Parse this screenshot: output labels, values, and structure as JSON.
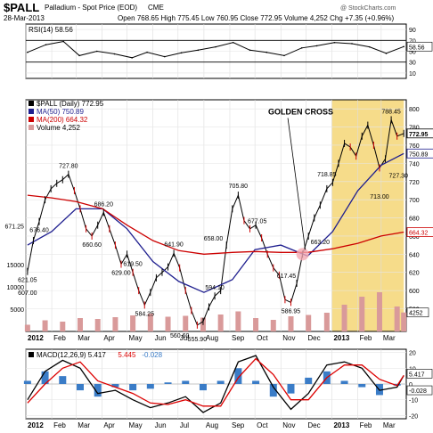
{
  "header": {
    "ticker": "$PALL",
    "name": "Palladium - Spot Price (EOD)",
    "exchange": "CME",
    "date": "28-Mar-2013",
    "open_label": "Open",
    "open": "768.65",
    "high_label": "High",
    "high": "775.45",
    "low_label": "Low",
    "low": "760.95",
    "close_label": "Close",
    "close": "772.95",
    "volume_label": "Volume",
    "volume": "4,252",
    "chg_label": "Chg",
    "chg": "+7.35 (+0.96%)",
    "watermark": "@ StockCharts.com"
  },
  "colors": {
    "price": "#000000",
    "up": "#000000",
    "down": "#cc0000",
    "ma50": "#1f1f8f",
    "ma200": "#cc0000",
    "volume": "#d99a9a",
    "highlight": "#f6dc8a",
    "macd_line": "#000000",
    "macd_signal": "#dd0000",
    "macd_hist": "#3a7cc7",
    "golden_dot": "#f4a9b3"
  },
  "chart_data": [
    {
      "type": "line",
      "panel": "rsi",
      "legend": "RSI(14) 58.56",
      "last_value": "58.56",
      "ylim": [
        0,
        100
      ],
      "y_ticks": [
        "90",
        "70",
        "50",
        "30",
        "10"
      ],
      "levels": [
        70,
        30
      ],
      "x": [
        "2012-01-03",
        "2012-01-25",
        "2012-02-15",
        "2012-03-05",
        "2012-03-26",
        "2012-04-16",
        "2012-05-07",
        "2012-05-25",
        "2012-06-15",
        "2012-07-05",
        "2012-07-25",
        "2012-08-15",
        "2012-09-05",
        "2012-09-25",
        "2012-10-15",
        "2012-11-05",
        "2012-11-26",
        "2012-12-14",
        "2013-01-04",
        "2013-01-25",
        "2013-02-15",
        "2013-03-07",
        "2013-03-28"
      ],
      "values": [
        48,
        62,
        68,
        42,
        50,
        45,
        38,
        48,
        40,
        47,
        52,
        58,
        66,
        52,
        48,
        42,
        56,
        60,
        66,
        64,
        58,
        46,
        58.56
      ]
    },
    {
      "type": "line",
      "panel": "price",
      "legend": [
        {
          "name": "$PALL (Daily) 772.95"
        },
        {
          "name": "MA(50) 750.89"
        },
        {
          "name": "MA(200) 664.32"
        },
        {
          "name": "Volume 4,252"
        }
      ],
      "ylim": [
        555,
        810
      ],
      "y_ticks": [
        "800",
        "780",
        "760",
        "740",
        "720",
        "700",
        "680",
        "660",
        "640",
        "620",
        "600",
        "580"
      ],
      "right_labels": [
        "772.95",
        "750.89",
        "664.32"
      ],
      "x_ticks": [
        "2012",
        "Feb",
        "Mar",
        "Apr",
        "May",
        "Jun",
        "Jul",
        "Aug",
        "Sep",
        "Oct",
        "Nov",
        "Dec",
        "2013",
        "Feb",
        "Mar"
      ],
      "volume_ticks": [
        "15000",
        "10000",
        "5000"
      ],
      "volume_last_label": "4252",
      "highlight_range": [
        "2013-01-01",
        "2013-03-28"
      ],
      "series": [
        {
          "role": "price",
          "x": [
            "2012-01-03",
            "2012-01-10",
            "2012-01-17",
            "2012-01-24",
            "2012-01-31",
            "2012-02-07",
            "2012-02-14",
            "2012-02-21",
            "2012-02-28",
            "2012-03-06",
            "2012-03-13",
            "2012-03-20",
            "2012-03-27",
            "2012-04-03",
            "2012-04-10",
            "2012-04-17",
            "2012-04-24",
            "2012-05-01",
            "2012-05-08",
            "2012-05-15",
            "2012-05-22",
            "2012-05-29",
            "2012-06-05",
            "2012-06-12",
            "2012-06-19",
            "2012-06-26",
            "2012-07-03",
            "2012-07-10",
            "2012-07-17",
            "2012-07-24",
            "2012-07-31",
            "2012-08-07",
            "2012-08-14",
            "2012-08-21",
            "2012-08-28",
            "2012-09-04",
            "2012-09-11",
            "2012-09-18",
            "2012-09-25",
            "2012-10-02",
            "2012-10-09",
            "2012-10-16",
            "2012-10-23",
            "2012-10-30",
            "2012-11-06",
            "2012-11-13",
            "2012-11-20",
            "2012-11-27",
            "2012-12-04",
            "2012-12-11",
            "2012-12-18",
            "2012-12-26",
            "2013-01-02",
            "2013-01-09",
            "2013-01-16",
            "2013-01-23",
            "2013-01-30",
            "2013-02-06",
            "2013-02-13",
            "2013-02-20",
            "2013-02-27",
            "2013-03-06",
            "2013-03-13",
            "2013-03-20",
            "2013-03-28"
          ],
          "values": [
            621,
            655,
            676,
            700,
            712,
            718,
            722,
            728,
            710,
            690,
            668,
            660,
            672,
            686,
            668,
            650,
            629,
            640,
            620,
            600,
            584,
            598,
            614,
            620,
            626,
            641,
            625,
            600,
            578,
            562,
            566,
            582,
            594,
            600,
            650,
            690,
            705,
            677,
            668,
            672,
            658,
            640,
            625,
            617,
            590,
            587,
            608,
            640,
            660,
            680,
            694,
            712,
            719,
            740,
            762,
            758,
            748,
            770,
            782,
            760,
            735,
            745,
            788,
            770,
            772.95
          ]
        },
        {
          "role": "ma50",
          "x": [
            "2012-01-03",
            "2012-02-01",
            "2012-03-01",
            "2012-04-02",
            "2012-05-01",
            "2012-06-01",
            "2012-07-02",
            "2012-08-01",
            "2012-09-04",
            "2012-10-01",
            "2012-11-01",
            "2012-12-03",
            "2013-01-02",
            "2013-02-01",
            "2013-03-01",
            "2013-03-28"
          ],
          "values": [
            650,
            665,
            690,
            690,
            668,
            632,
            610,
            598,
            612,
            645,
            650,
            638,
            665,
            710,
            738,
            750.89
          ]
        },
        {
          "role": "ma200",
          "x": [
            "2012-01-03",
            "2012-02-01",
            "2012-03-01",
            "2012-04-02",
            "2012-05-01",
            "2012-06-01",
            "2012-07-02",
            "2012-08-01",
            "2012-09-04",
            "2012-10-01",
            "2012-11-01",
            "2012-12-03",
            "2013-01-02",
            "2013-02-01",
            "2013-03-01",
            "2013-03-28"
          ],
          "values": [
            705,
            702,
            698,
            690,
            672,
            655,
            644,
            640,
            642,
            643,
            642,
            642,
            646,
            652,
            660,
            664.32
          ]
        }
      ],
      "volume": {
        "x": [
          "2012-01-03",
          "2012-01-24",
          "2012-02-14",
          "2012-03-06",
          "2012-03-27",
          "2012-04-17",
          "2012-05-08",
          "2012-05-29",
          "2012-06-19",
          "2012-07-10",
          "2012-07-31",
          "2012-08-21",
          "2012-09-11",
          "2012-10-02",
          "2012-10-23",
          "2012-11-13",
          "2012-12-04",
          "2012-12-26",
          "2013-01-16",
          "2013-02-06",
          "2013-02-27",
          "2013-03-20",
          "2013-03-28"
        ],
        "values": [
          1500,
          2500,
          2200,
          3000,
          2800,
          3200,
          3600,
          4000,
          3300,
          3500,
          3100,
          3800,
          4500,
          3000,
          2600,
          3400,
          3700,
          4200,
          6000,
          7800,
          8800,
          5600,
          4252
        ]
      },
      "annotations": [
        {
          "text": "727.80",
          "x": "2012-02-21",
          "y": 728,
          "pos": "above"
        },
        {
          "text": "671.25",
          "x": "2012-01-03",
          "y": 671,
          "pos": "left"
        },
        {
          "text": "676.40",
          "x": "2012-01-17",
          "y": 676,
          "pos": "below"
        },
        {
          "text": "660.60",
          "x": "2012-03-20",
          "y": 660,
          "pos": "below"
        },
        {
          "text": "686.20",
          "x": "2012-04-03",
          "y": 686,
          "pos": "above"
        },
        {
          "text": "629.00",
          "x": "2012-04-24",
          "y": 629,
          "pos": "below"
        },
        {
          "text": "641.90",
          "x": "2012-06-26",
          "y": 642,
          "pos": "above"
        },
        {
          "text": "619.50",
          "x": "2012-05-08",
          "y": 620,
          "pos": "above"
        },
        {
          "text": "584.25",
          "x": "2012-05-22",
          "y": 584,
          "pos": "below"
        },
        {
          "text": "560.60",
          "x": "2012-07-03",
          "y": 560,
          "pos": "below"
        },
        {
          "text": "555.90",
          "x": "2012-07-24",
          "y": 556,
          "pos": "below"
        },
        {
          "text": "594.10",
          "x": "2012-08-14",
          "y": 594,
          "pos": "above"
        },
        {
          "text": "658.00",
          "x": "2012-08-28",
          "y": 658,
          "pos": "left"
        },
        {
          "text": "705.80",
          "x": "2012-09-11",
          "y": 706,
          "pos": "above"
        },
        {
          "text": "677.05",
          "x": "2012-09-18",
          "y": 677,
          "pos": "right"
        },
        {
          "text": "617.45",
          "x": "2012-10-23",
          "y": 617,
          "pos": "right"
        },
        {
          "text": "586.95",
          "x": "2012-11-13",
          "y": 587,
          "pos": "below"
        },
        {
          "text": "621.05",
          "x": "2012-01-03",
          "y": 621,
          "pos": "below"
        },
        {
          "text": "607.00",
          "x": "2012-01-03",
          "y": 607,
          "pos": "below"
        },
        {
          "text": "663.20",
          "x": "2012-12-18",
          "y": 663,
          "pos": "below"
        },
        {
          "text": "718.85",
          "x": "2012-12-26",
          "y": 719,
          "pos": "above"
        },
        {
          "text": "788.45",
          "x": "2013-03-13",
          "y": 788,
          "pos": "above"
        },
        {
          "text": "727.30",
          "x": "2013-03-06",
          "y": 727,
          "pos": "right"
        },
        {
          "text": "713.00",
          "x": "2013-02-27",
          "y": 713,
          "pos": "below"
        },
        {
          "text": "GOLDEN CROSS",
          "x": "2012-11-20",
          "y": 735,
          "pos": "callout"
        }
      ]
    },
    {
      "type": "line",
      "panel": "macd",
      "legend": [
        {
          "name": "MACD(12,26,9)",
          "value": "5.417"
        },
        {
          "name": "",
          "value": "5.445"
        },
        {
          "name": "",
          "value": "-0.028"
        }
      ],
      "ylim": [
        -22,
        22
      ],
      "y_ticks": [
        "20",
        "10",
        "0",
        "-10",
        "-20"
      ],
      "right_labels": [
        "5.417",
        "-0.028"
      ],
      "series": [
        {
          "role": "macd",
          "x": [
            "2012-01-03",
            "2012-01-24",
            "2012-02-14",
            "2012-03-06",
            "2012-03-27",
            "2012-04-17",
            "2012-05-08",
            "2012-05-29",
            "2012-06-19",
            "2012-07-10",
            "2012-07-31",
            "2012-08-21",
            "2012-09-11",
            "2012-10-02",
            "2012-10-23",
            "2012-11-13",
            "2012-12-04",
            "2012-12-26",
            "2013-01-16",
            "2013-02-06",
            "2013-02-27",
            "2013-03-20",
            "2013-03-28"
          ],
          "values": [
            -10,
            8,
            15,
            10,
            -6,
            -4,
            -10,
            -15,
            -12,
            -8,
            -18,
            -12,
            14,
            18,
            -2,
            -16,
            -6,
            12,
            14,
            10,
            -4,
            -2,
            5.417
          ]
        },
        {
          "role": "signal",
          "x": [
            "2012-01-03",
            "2012-01-24",
            "2012-02-14",
            "2012-03-06",
            "2012-03-27",
            "2012-04-17",
            "2012-05-08",
            "2012-05-29",
            "2012-06-19",
            "2012-07-10",
            "2012-07-31",
            "2012-08-21",
            "2012-09-11",
            "2012-10-02",
            "2012-10-23",
            "2012-11-13",
            "2012-12-04",
            "2012-12-26",
            "2013-01-16",
            "2013-02-06",
            "2013-02-27",
            "2013-03-20",
            "2013-03-28"
          ],
          "values": [
            -12,
            0,
            10,
            14,
            2,
            -2,
            -6,
            -12,
            -13,
            -10,
            -14,
            -14,
            4,
            16,
            6,
            -10,
            -10,
            4,
            12,
            12,
            3,
            -1,
            5.445
          ]
        },
        {
          "role": "histogram",
          "x": [
            "2012-01-03",
            "2012-01-24",
            "2012-02-14",
            "2012-03-06",
            "2012-03-27",
            "2012-04-17",
            "2012-05-08",
            "2012-05-29",
            "2012-06-19",
            "2012-07-10",
            "2012-07-31",
            "2012-08-21",
            "2012-09-11",
            "2012-10-02",
            "2012-10-23",
            "2012-11-13",
            "2012-12-04",
            "2012-12-26",
            "2013-01-16",
            "2013-02-06",
            "2013-02-27",
            "2013-03-20",
            "2013-03-28"
          ],
          "values": [
            2,
            8,
            5,
            -4,
            -8,
            -2,
            -4,
            -3,
            1,
            2,
            -4,
            2,
            10,
            2,
            -8,
            -6,
            4,
            8,
            2,
            -2,
            -7,
            -1,
            -0.028
          ]
        }
      ]
    }
  ]
}
